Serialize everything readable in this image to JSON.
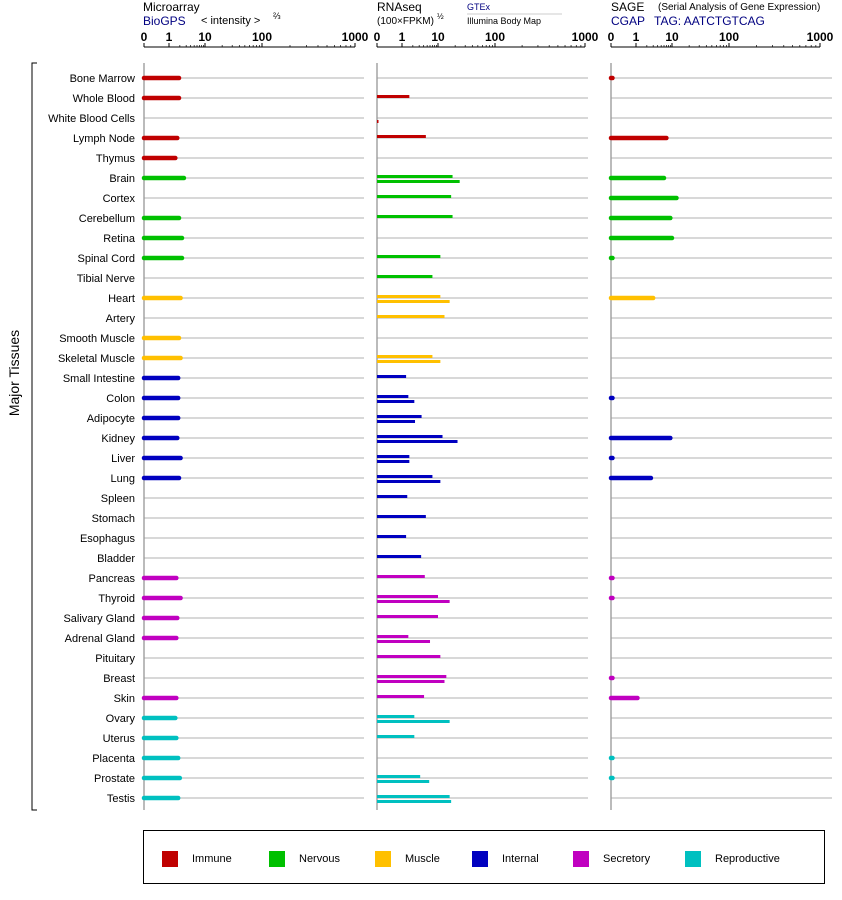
{
  "y_axis_label": "Major Tissues",
  "panels": [
    {
      "title": "Microarray",
      "source": "BioGPS",
      "metric": "< intensity >",
      "exponent": "⅔",
      "ticks": [
        "0",
        "1",
        "10",
        "100",
        "1000"
      ]
    },
    {
      "title": "RNAseq",
      "metric": "(100×FPKM)",
      "exponent": "½",
      "sources": [
        "GTEx",
        "Illumina Body Map"
      ],
      "ticks": [
        "0",
        "1",
        "10",
        "100",
        "1000"
      ]
    },
    {
      "title": "SAGE",
      "subtitle": "(Serial Analysis of Gene Expression)",
      "source": "CGAP",
      "tag_label": "TAG: AATCTGTCAG",
      "ticks": [
        "0",
        "1",
        "10",
        "100",
        "1000"
      ]
    }
  ],
  "colors": {
    "Immune": "#c00000",
    "Nervous": "#00c000",
    "Muscle": "#ffc000",
    "Internal": "#0000c0",
    "Secretory": "#c000c0",
    "Reproductive": "#00c0c0"
  },
  "legend": [
    "Immune",
    "Nervous",
    "Muscle",
    "Internal",
    "Secretory",
    "Reproductive"
  ],
  "chart_data": [
    {
      "type": "bar",
      "title": "Microarray",
      "xlim": [
        0,
        1000
      ],
      "categories": [
        "Bone Marrow",
        "Whole Blood",
        "White Blood Cells",
        "Lymph Node",
        "Thymus",
        "Brain",
        "Cortex",
        "Cerebellum",
        "Retina",
        "Spinal Cord",
        "Tibial Nerve",
        "Heart",
        "Artery",
        "Smooth Muscle",
        "Skeletal Muscle",
        "Small Intestine",
        "Colon",
        "Adipocyte",
        "Kidney",
        "Liver",
        "Lung",
        "Spleen",
        "Stomach",
        "Esophagus",
        "Bladder",
        "Pancreas",
        "Thyroid",
        "Salivary Gland",
        "Adrenal Gland",
        "Pituitary",
        "Breast",
        "Skin",
        "Ovary",
        "Uterus",
        "Placenta",
        "Prostate",
        "Testis"
      ],
      "groups": [
        "Immune",
        "Immune",
        "Immune",
        "Immune",
        "Immune",
        "Nervous",
        "Nervous",
        "Nervous",
        "Nervous",
        "Nervous",
        "Nervous",
        "Muscle",
        "Muscle",
        "Muscle",
        "Muscle",
        "Internal",
        "Internal",
        "Internal",
        "Internal",
        "Internal",
        "Internal",
        "Internal",
        "Internal",
        "Internal",
        "Internal",
        "Secretory",
        "Secretory",
        "Secretory",
        "Secretory",
        "Secretory",
        "Secretory",
        "Secretory",
        "Reproductive",
        "Reproductive",
        "Reproductive",
        "Reproductive",
        "Reproductive"
      ],
      "values": [
        1.9,
        1.9,
        null,
        1.7,
        1.5,
        2.6,
        null,
        1.9,
        2.3,
        2.3,
        null,
        2.1,
        null,
        1.9,
        2.1,
        1.8,
        1.8,
        1.8,
        1.7,
        2.1,
        1.9,
        null,
        null,
        null,
        null,
        1.6,
        2.1,
        1.7,
        1.6,
        null,
        null,
        1.6,
        1.5,
        1.6,
        1.8,
        2.0,
        1.8
      ]
    },
    {
      "type": "bar",
      "title": "RNAseq",
      "xlim": [
        0,
        1000
      ],
      "categories": [
        "Bone Marrow",
        "Whole Blood",
        "White Blood Cells",
        "Lymph Node",
        "Thymus",
        "Brain",
        "Cortex",
        "Cerebellum",
        "Retina",
        "Spinal Cord",
        "Tibial Nerve",
        "Heart",
        "Artery",
        "Smooth Muscle",
        "Skeletal Muscle",
        "Small Intestine",
        "Colon",
        "Adipocyte",
        "Kidney",
        "Liver",
        "Lung",
        "Spleen",
        "Stomach",
        "Esophagus",
        "Bladder",
        "Pancreas",
        "Thyroid",
        "Salivary Gland",
        "Adrenal Gland",
        "Pituitary",
        "Breast",
        "Skin",
        "Ovary",
        "Uterus",
        "Placenta",
        "Prostate",
        "Testis"
      ],
      "series": [
        {
          "name": "GTEx",
          "values": [
            null,
            1.6,
            null,
            4.6,
            null,
            18,
            17,
            18,
            null,
            11,
            7,
            11,
            13,
            null,
            7,
            1.3,
            1.5,
            3.5,
            12,
            1.6,
            7,
            1.4,
            4.6,
            1.3,
            3.4,
            4.3,
            10,
            10,
            1.5,
            11,
            14,
            4.1,
            2.2,
            2.2,
            null,
            3.2,
            16
          ]
        },
        {
          "name": "Illumina Body Map",
          "values": [
            null,
            null,
            0.02,
            null,
            null,
            24,
            null,
            null,
            null,
            null,
            null,
            16,
            null,
            null,
            11,
            null,
            2.2,
            2.3,
            22,
            1.6,
            11,
            null,
            null,
            null,
            null,
            null,
            16,
            null,
            6,
            null,
            13,
            null,
            16,
            null,
            null,
            5.7,
            17
          ]
        }
      ]
    },
    {
      "type": "bar",
      "title": "SAGE",
      "xlim": [
        0,
        1000
      ],
      "categories": [
        "Bone Marrow",
        "Whole Blood",
        "White Blood Cells",
        "Lymph Node",
        "Thymus",
        "Brain",
        "Cortex",
        "Cerebellum",
        "Retina",
        "Spinal Cord",
        "Tibial Nerve",
        "Heart",
        "Artery",
        "Smooth Muscle",
        "Skeletal Muscle",
        "Small Intestine",
        "Colon",
        "Adipocyte",
        "Kidney",
        "Liver",
        "Lung",
        "Spleen",
        "Stomach",
        "Esophagus",
        "Bladder",
        "Pancreas",
        "Thyroid",
        "Salivary Gland",
        "Adrenal Gland",
        "Pituitary",
        "Breast",
        "Skin",
        "Ovary",
        "Uterus",
        "Placenta",
        "Prostate",
        "Testis"
      ],
      "values": [
        0.05,
        null,
        null,
        7,
        null,
        6,
        12,
        9,
        10,
        0.05,
        null,
        3,
        null,
        null,
        null,
        null,
        0.05,
        null,
        9,
        0.05,
        2.6,
        null,
        null,
        null,
        null,
        0.05,
        0.05,
        null,
        null,
        null,
        0.05,
        1.1,
        null,
        null,
        0.05,
        0.05,
        null
      ]
    }
  ]
}
